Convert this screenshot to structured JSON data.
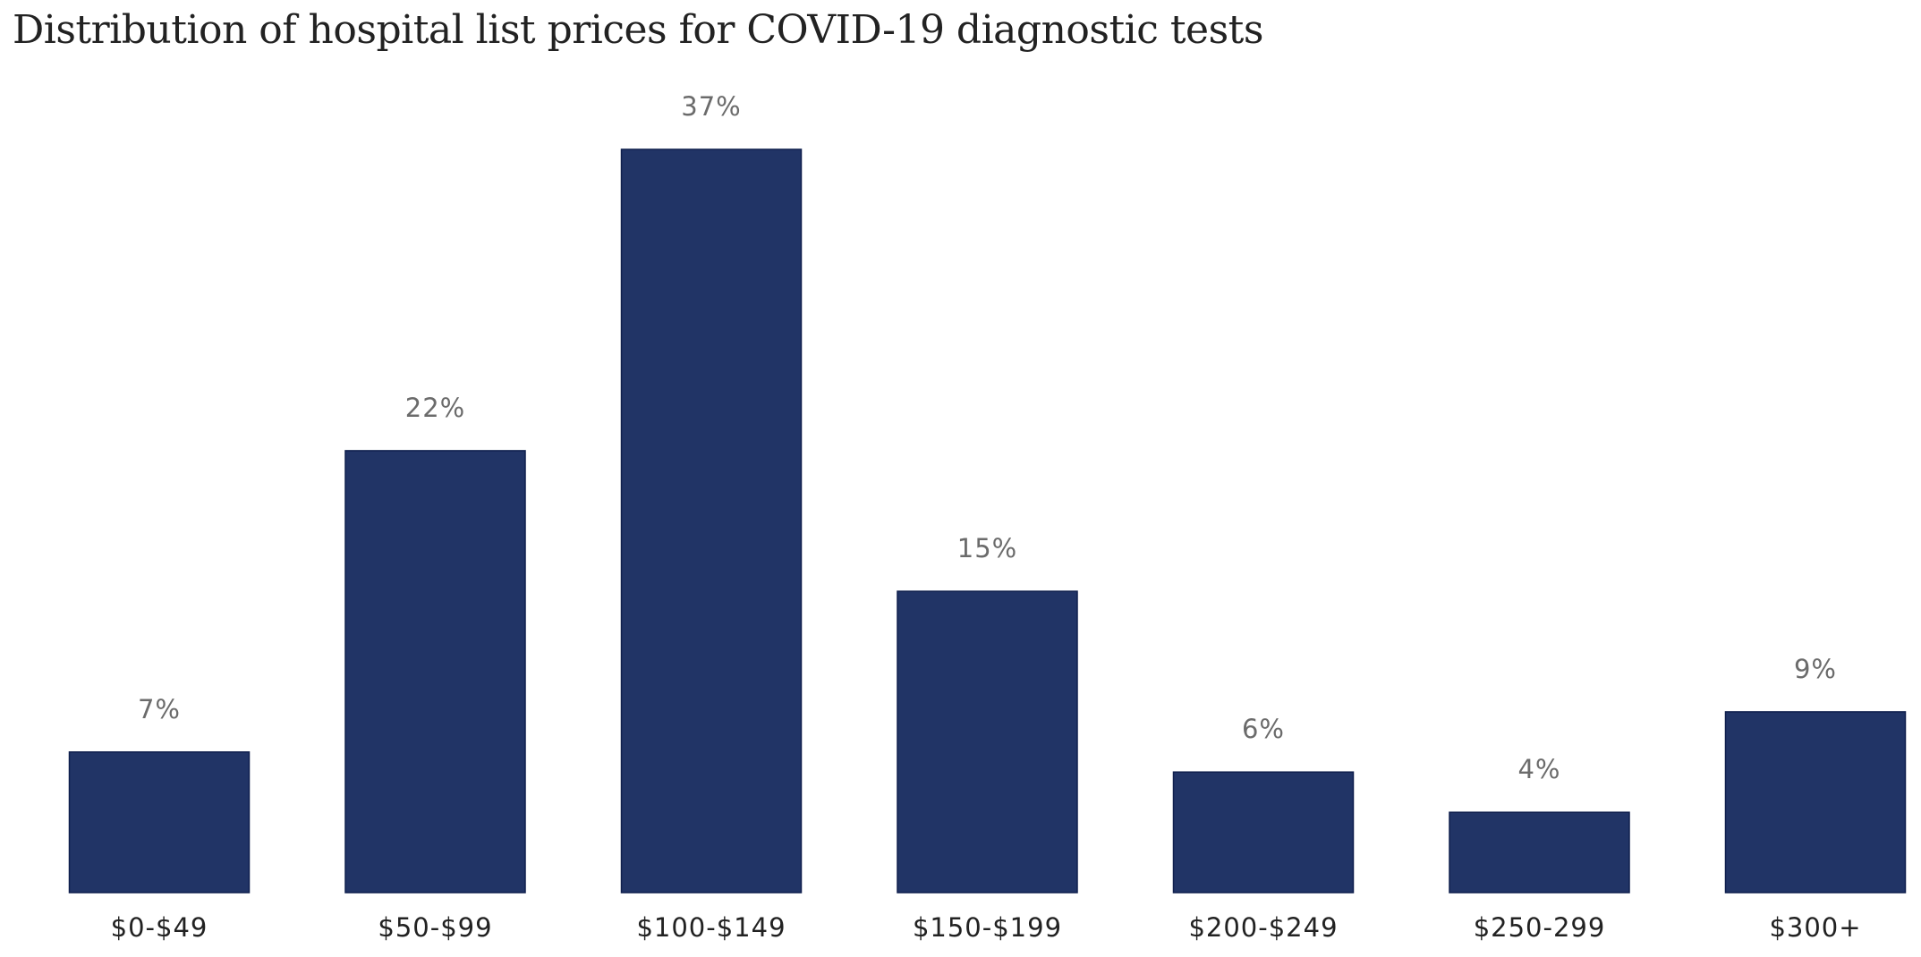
{
  "chart_data": {
    "type": "bar",
    "title": "Distribution of hospital list prices for COVID-19 diagnostic tests",
    "categories": [
      "$0-$49",
      "$50-$99",
      "$100-$149",
      "$150-$199",
      "$200-$249",
      "$250-299",
      "$300+"
    ],
    "values": [
      7,
      22,
      37,
      15,
      6,
      4,
      9
    ],
    "data_labels": [
      "7%",
      "22%",
      "37%",
      "15%",
      "6%",
      "4%",
      "9%"
    ],
    "xlabel": "",
    "ylabel": "",
    "ylim": [
      0,
      37
    ],
    "grid": false,
    "legend": "none",
    "bar_color": "#213466"
  }
}
